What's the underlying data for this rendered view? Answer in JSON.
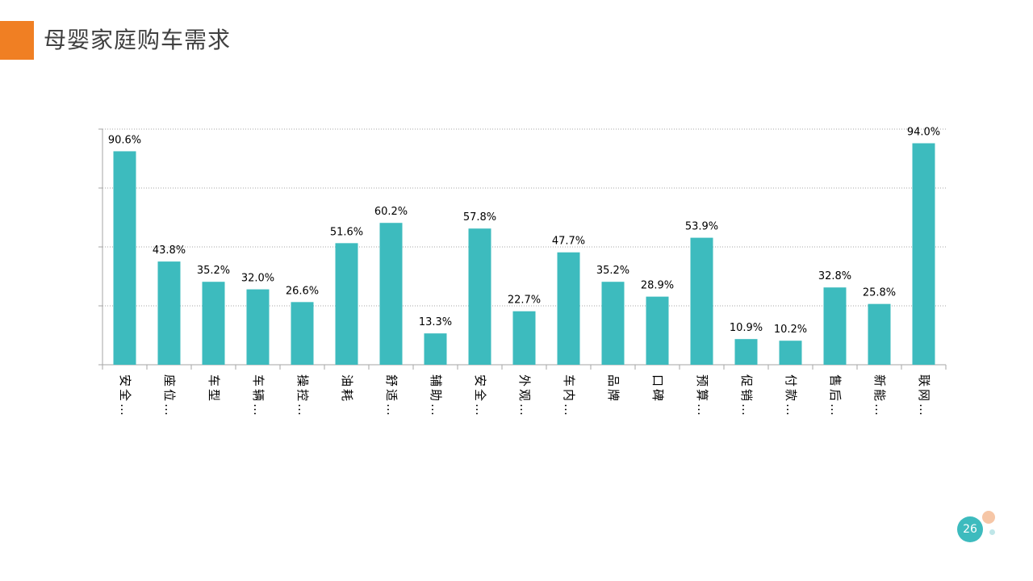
{
  "header": {
    "title": "母婴家庭购车需求"
  },
  "page": {
    "number": "26"
  },
  "colors": {
    "accent": "#F07F23",
    "bar": "#3DBBBE",
    "badge": "#3DBBBE",
    "deco1": "#F6C6A6",
    "deco2": "#BFE6E8",
    "grid": "#A6A6A6",
    "axis": "#A6A6A6",
    "text": "#000000"
  },
  "chart_data": {
    "type": "bar",
    "title": "",
    "xlabel": "",
    "ylabel": "",
    "ylim": [
      0,
      100
    ],
    "grid": true,
    "categories": [
      "安全…",
      "座位…",
      "车型",
      "车辆…",
      "操控…",
      "油耗",
      "舒适…",
      "辅助…",
      "安全…",
      "外观…",
      "车内…",
      "品牌",
      "口碑",
      "预算…",
      "促销…",
      "付款…",
      "售后…",
      "新能…",
      "联网…"
    ],
    "values": [
      90.6,
      43.8,
      35.2,
      32.0,
      26.6,
      51.6,
      60.2,
      13.3,
      57.8,
      22.7,
      47.7,
      35.2,
      28.9,
      53.9,
      10.9,
      10.2,
      32.8,
      25.8,
      94.0
    ],
    "labels": [
      "90.6%",
      "43.8%",
      "35.2%",
      "32.0%",
      "26.6%",
      "51.6%",
      "60.2%",
      "13.3%",
      "57.8%",
      "22.7%",
      "47.7%",
      "35.2%",
      "28.9%",
      "53.9%",
      "10.9%",
      "10.2%",
      "32.8%",
      "25.8%",
      "94.0%"
    ]
  }
}
